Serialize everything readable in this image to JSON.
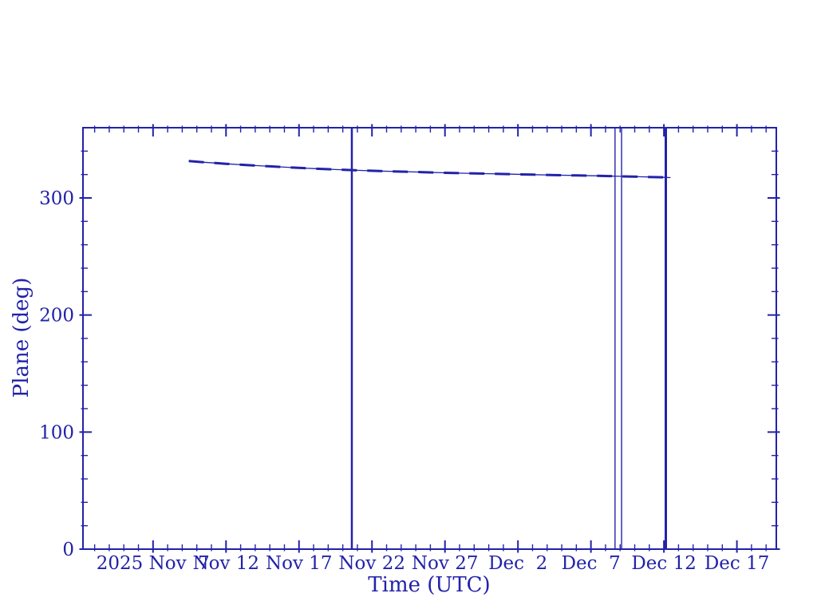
{
  "colors": {
    "stroke": "#2222aa",
    "background": "#ffffff"
  },
  "chart_data": {
    "type": "line",
    "title": "",
    "xlabel": "Time (UTC)",
    "ylabel": "Plane (deg)",
    "x_unit": "days since 2025-11-01 00:00 UTC",
    "xlim": [
      1.2,
      48.7
    ],
    "ylim": [
      0,
      360
    ],
    "grid": false,
    "legend": "none",
    "x_major_ticks": [
      {
        "d": 6,
        "label": "2025 Nov  7"
      },
      {
        "d": 11,
        "label": "Nov 12"
      },
      {
        "d": 16,
        "label": "Nov 17"
      },
      {
        "d": 21,
        "label": "Nov 22"
      },
      {
        "d": 26,
        "label": "Nov 27"
      },
      {
        "d": 31,
        "label": "Dec  2"
      },
      {
        "d": 36,
        "label": "Dec  7"
      },
      {
        "d": 41,
        "label": "Dec 12"
      },
      {
        "d": 46,
        "label": "Dec 17"
      }
    ],
    "x_minor_step": 1,
    "y_major_ticks": [
      {
        "v": 0,
        "label": "0"
      },
      {
        "v": 100,
        "label": "100"
      },
      {
        "v": 200,
        "label": "200"
      },
      {
        "v": 300,
        "label": "300"
      }
    ],
    "y_minor_step": 20,
    "series": [
      {
        "name": "plane-angle",
        "style": "thin-solid",
        "stroke_width": 1.3,
        "points": [
          [
            8.45,
            331.5
          ],
          [
            9.5,
            330.5
          ],
          [
            11,
            329.2
          ],
          [
            12.5,
            328.0
          ],
          [
            14,
            327.0
          ],
          [
            15.5,
            326.0
          ],
          [
            17,
            325.1
          ],
          [
            18.5,
            324.3
          ],
          [
            20,
            323.6
          ],
          [
            21.5,
            323.0
          ],
          [
            23,
            322.5
          ],
          [
            24.5,
            322.0
          ],
          [
            26,
            321.5
          ],
          [
            27.5,
            321.1
          ],
          [
            29,
            320.7
          ],
          [
            30.5,
            320.3
          ],
          [
            32,
            319.9
          ],
          [
            33.5,
            319.5
          ],
          [
            35,
            319.2
          ],
          [
            36.5,
            318.9
          ],
          [
            38,
            318.5
          ],
          [
            39.5,
            318.1
          ],
          [
            41,
            317.6
          ],
          [
            41.45,
            317.4
          ]
        ]
      },
      {
        "name": "plane-angle-dashed-overlay",
        "style": "thick-dashed",
        "stroke_width": 3,
        "dash": [
          19,
          13
        ],
        "points": [
          [
            8.45,
            331.5
          ],
          [
            9.5,
            330.5
          ],
          [
            11,
            329.2
          ],
          [
            12.5,
            328.0
          ],
          [
            14,
            327.0
          ],
          [
            15.5,
            326.0
          ],
          [
            17,
            325.1
          ],
          [
            18.5,
            324.3
          ],
          [
            20,
            323.6
          ],
          [
            21.5,
            323.0
          ],
          [
            23,
            322.5
          ],
          [
            24.5,
            322.0
          ],
          [
            26,
            321.5
          ],
          [
            27.5,
            321.1
          ],
          [
            29,
            320.7
          ],
          [
            30.5,
            320.3
          ],
          [
            32,
            319.9
          ],
          [
            33.5,
            319.5
          ],
          [
            35,
            319.2
          ],
          [
            36.5,
            318.9
          ],
          [
            38,
            318.5
          ],
          [
            39.5,
            318.1
          ],
          [
            41,
            317.6
          ],
          [
            41.45,
            317.4
          ]
        ]
      }
    ],
    "vlines": [
      {
        "d": 19.62,
        "stroke_width": 2.5
      },
      {
        "d": 37.65,
        "stroke_width": 1.4
      },
      {
        "d": 38.1,
        "stroke_width": 1.4
      },
      {
        "d": 41.13,
        "stroke_width": 3.0
      }
    ]
  }
}
